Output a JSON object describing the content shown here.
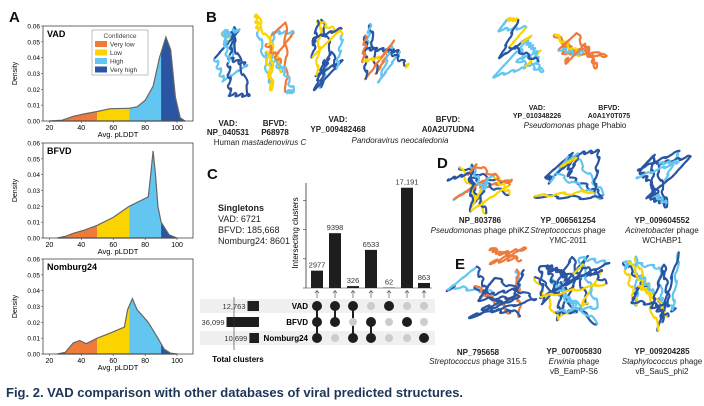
{
  "panels": {
    "A": "A",
    "B": "B",
    "C": "C",
    "D": "D",
    "E": "E"
  },
  "colors": {
    "very_low": "#f07a3a",
    "low": "#fbd400",
    "high": "#63c6f0",
    "very_high": "#2a55a3",
    "bar": "#1e1e1e",
    "caption": "#1d3557"
  },
  "chart_data": [
    {
      "type": "area",
      "title": "VAD",
      "xlabel": "Avg. pLDDT",
      "ylabel": "Density",
      "xlim": [
        16,
        110
      ],
      "ylim": [
        0,
        0.06
      ],
      "xticks": [
        "20",
        "40",
        "60",
        "80",
        "100"
      ],
      "yticks": [
        "0.00",
        "0.01",
        "0.02",
        "0.03",
        "0.04",
        "0.05",
        "0.06"
      ],
      "x": [
        20,
        28,
        35,
        42,
        50,
        58,
        70,
        75,
        80,
        85,
        89,
        93,
        96,
        99,
        102,
        105
      ],
      "y": [
        0,
        0.0005,
        0.003,
        0.0045,
        0.006,
        0.0078,
        0.008,
        0.009,
        0.013,
        0.022,
        0.04,
        0.053,
        0.045,
        0.015,
        0.002,
        0
      ],
      "legend": {
        "title": "Confidence",
        "entries": [
          "Very low",
          "Low",
          "High",
          "Very high"
        ],
        "placement": "top-center"
      }
    },
    {
      "type": "area",
      "title": "BFVD",
      "xlabel": "Avg. pLDDT",
      "ylabel": "Density",
      "xlim": [
        16,
        110
      ],
      "ylim": [
        0,
        0.06
      ],
      "xticks": [
        "20",
        "40",
        "60",
        "80",
        "100"
      ],
      "yticks": [
        "0.00",
        "0.01",
        "0.02",
        "0.03",
        "0.04",
        "0.05",
        "0.06"
      ],
      "x": [
        25,
        30,
        35,
        42,
        50,
        60,
        70,
        78,
        82,
        83.5,
        85,
        86.5,
        88,
        90,
        95,
        100
      ],
      "y": [
        0,
        0.001,
        0.003,
        0.005,
        0.008,
        0.013,
        0.02,
        0.024,
        0.026,
        0.04,
        0.055,
        0.04,
        0.02,
        0.01,
        0.002,
        0
      ]
    },
    {
      "type": "area",
      "title": "Nomburg24",
      "xlabel": "Avg. pLDDT",
      "ylabel": "Density",
      "xlim": [
        16,
        110
      ],
      "ylim": [
        0,
        0.06
      ],
      "xticks": [
        "20",
        "40",
        "60",
        "80",
        "100"
      ],
      "yticks": [
        "0.00",
        "0.01",
        "0.02",
        "0.03",
        "0.04",
        "0.05",
        "0.06"
      ],
      "x": [
        25,
        30,
        35,
        39,
        43,
        50,
        60,
        67,
        69,
        72,
        75,
        82,
        88,
        92,
        96,
        100
      ],
      "y": [
        0,
        0.001,
        0.007,
        0.0085,
        0.0065,
        0.01,
        0.014,
        0.017,
        0.028,
        0.035,
        0.028,
        0.02,
        0.01,
        0.003,
        0.0005,
        0
      ]
    },
    {
      "type": "upset",
      "ylabel": "Intersecting clusters",
      "ylim": [
        0,
        18000
      ],
      "sets": [
        "VAD",
        "BFVD",
        "Nomburg24"
      ],
      "set_totals": [
        12763,
        36099,
        10699
      ],
      "set_total_labels": [
        "12,763",
        "36,099",
        "10,699"
      ],
      "set_total_title": "Total clusters",
      "intersections": [
        {
          "members": [
            0,
            1,
            2
          ],
          "value": 2977,
          "label": "2977"
        },
        {
          "members": [
            0,
            1
          ],
          "value": 9398,
          "label": "9398"
        },
        {
          "members": [
            0,
            2
          ],
          "value": 326,
          "label": "326"
        },
        {
          "members": [
            1,
            2
          ],
          "value": 6533,
          "label": "6533"
        },
        {
          "members": [
            0
          ],
          "value": 62,
          "label": "62"
        },
        {
          "members": [
            1
          ],
          "value": 17191,
          "label": "17,191"
        },
        {
          "members": [
            2
          ],
          "value": 863,
          "label": "863"
        }
      ]
    }
  ],
  "singletons": {
    "title": "Singletons",
    "vad": "VAD: 6721",
    "bfvd": "BFVD: 185,668",
    "nomburg": "Nomburg24: 8601"
  },
  "panelB": [
    {
      "vad_label": "VAD:",
      "vad_id": "NP_040531",
      "bfvd_label": "BFVD:",
      "bfvd_id": "P68978",
      "species_plain": "Human ",
      "species_italic": "mastadenovirus C"
    },
    {
      "vad_label": "VAD:",
      "vad_id": "YP_009482468",
      "bfvd_label": "BFVD:",
      "bfvd_id": "A0A2U7UDN4",
      "species_italic": "Pandoravirus neocaledonia"
    },
    {
      "vad_label": "VAD:",
      "vad_id": "YP_010348226",
      "bfvd_label": "BFVD:",
      "bfvd_id": "A0A1Y0T075",
      "species_italic": "Pseudomonas",
      "species_plain": " phage Phabio"
    }
  ],
  "panelD": [
    {
      "id": "NP_803786",
      "species_italic": "Pseudomonas",
      "species_plain": " phage phiKZ"
    },
    {
      "id": "YP_006561254",
      "species_italic": "Streptococcus",
      "species_plain": " phage",
      "line3": "YMC-2011"
    },
    {
      "id": "YP_009604552",
      "species_italic": "Acinetobacter",
      "species_plain": " phage",
      "line3": "WCHABP1"
    }
  ],
  "panelE": [
    {
      "id": "NP_795658",
      "species_italic": "Streptococcus",
      "species_plain": " phage 315.5"
    },
    {
      "id": "YP_007005830",
      "species_italic": "Erwinia",
      "species_plain": " phage",
      "line3": "vB_EamP-S6"
    },
    {
      "id": "YP_009204285",
      "species_italic": "Staphylococcus",
      "species_plain": " phage",
      "line3": "vB_SauS_phi2"
    }
  ],
  "caption": "Fig. 2. VAD comparison with other databases of viral predicted structures."
}
